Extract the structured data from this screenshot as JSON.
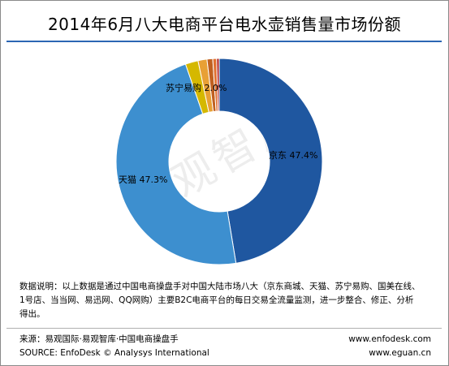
{
  "title": "2014年6月八大电商平台电水壶销售量市场份额",
  "watermark": "易观智库",
  "note": {
    "line1": "数据说明：以上数据是通过中国电商操盘手对中国大陆市场八大（京东商城、天猫、苏宁易购、国美在线、",
    "line2": "1号店、当当网、易迅网、QQ网购）主要B2C电商平台的每日交易全流量监测，进一步整合、修正、分析",
    "line3": "得出。"
  },
  "source": {
    "cn": "来源：易观国际·易观智库·中国电商操盘手",
    "en": "SOURCE: EnfoDesk © Analysys International",
    "url1": "www.enfodesk.com",
    "url2": "www.eguan.cn"
  },
  "chart_data": {
    "type": "pie",
    "variant": "donut",
    "start": "12 o'clock",
    "direction": "clockwise",
    "title": "2014年6月八大电商平台电水壶销售量市场份额",
    "slices": [
      {
        "name": "京东",
        "value": 47.4,
        "color": "#1f57a0",
        "label": "京东 47.4%"
      },
      {
        "name": "天猫",
        "value": 47.3,
        "color": "#3d8fcf",
        "label": "天猫 47.3%"
      },
      {
        "name": "苏宁易购",
        "value": 2.0,
        "color": "#d5b800",
        "label": "苏宁易购 2.0%"
      },
      {
        "name": "",
        "value": 1.4,
        "color": "#e8a035",
        "label": ""
      },
      {
        "name": "",
        "value": 0.9,
        "color": "#c06020",
        "label": ""
      },
      {
        "name": "",
        "value": 0.6,
        "color": "#e07030",
        "label": ""
      },
      {
        "name": "",
        "value": 0.4,
        "color": "#b02020",
        "label": ""
      }
    ]
  }
}
